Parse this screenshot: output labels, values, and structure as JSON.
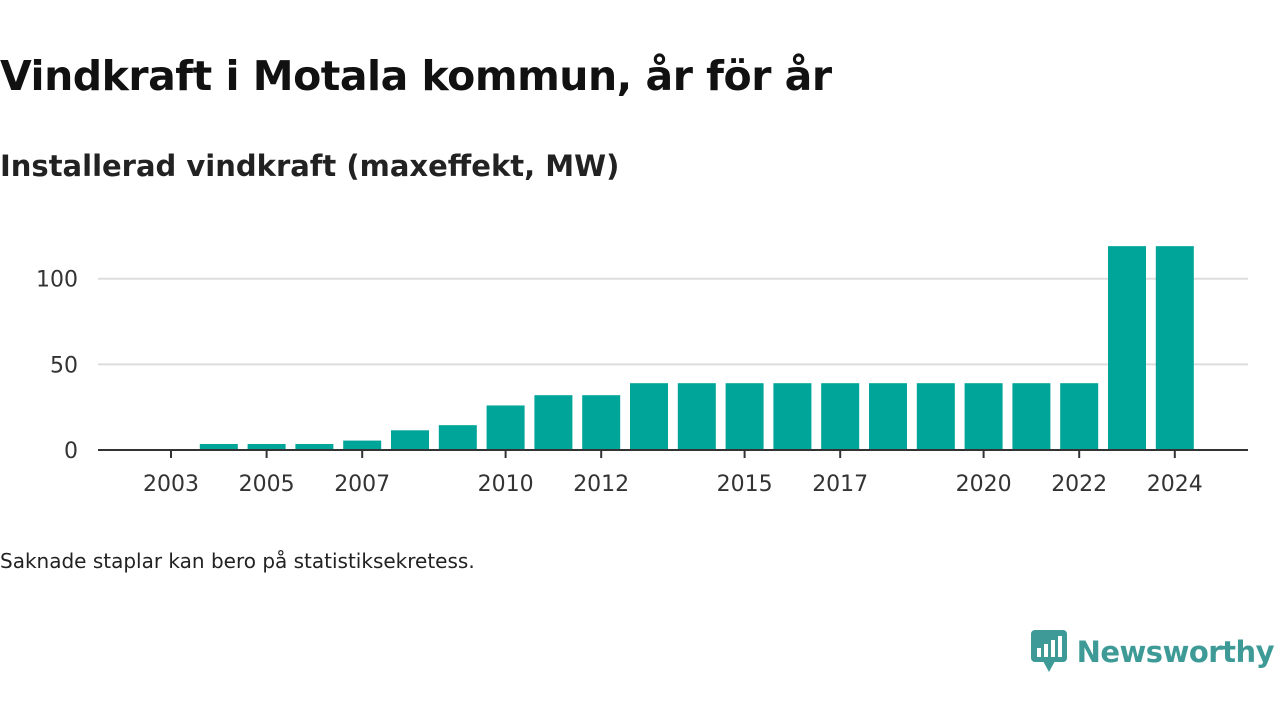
{
  "title": "Vindkraft i Motala kommun, år för år",
  "subtitle": "Installerad vindkraft (maxeffekt, MW)",
  "note": "Saknade staplar kan bero på statistiksekretess.",
  "brand": {
    "name": "Newsworthy",
    "logo_icon": "newsworthy-logo-icon",
    "color": "#3e9a96"
  },
  "colors": {
    "bar": "#00a599",
    "grid": "#dddddd",
    "axis": "#333333"
  },
  "chart_data": {
    "type": "bar",
    "categories": [
      "2002",
      "2003",
      "2004",
      "2005",
      "2006",
      "2007",
      "2008",
      "2009",
      "2010",
      "2011",
      "2012",
      "2013",
      "2014",
      "2015",
      "2016",
      "2017",
      "2018",
      "2019",
      "2020",
      "2021",
      "2022",
      "2023",
      "2024"
    ],
    "values": [
      null,
      null,
      3.5,
      3.5,
      3.5,
      5.5,
      11.5,
      14.5,
      26,
      32,
      32,
      39,
      39,
      39,
      39,
      39,
      39,
      39,
      39,
      39,
      39,
      119,
      119
    ],
    "x_tick_labels": [
      "2003",
      "2005",
      "2007",
      "2010",
      "2012",
      "2015",
      "2017",
      "2020",
      "2022",
      "2024"
    ],
    "y_ticks": [
      0,
      50,
      100
    ],
    "ylim": [
      0,
      125
    ],
    "grid": true,
    "legend": "none",
    "xlabel": "",
    "ylabel": ""
  }
}
